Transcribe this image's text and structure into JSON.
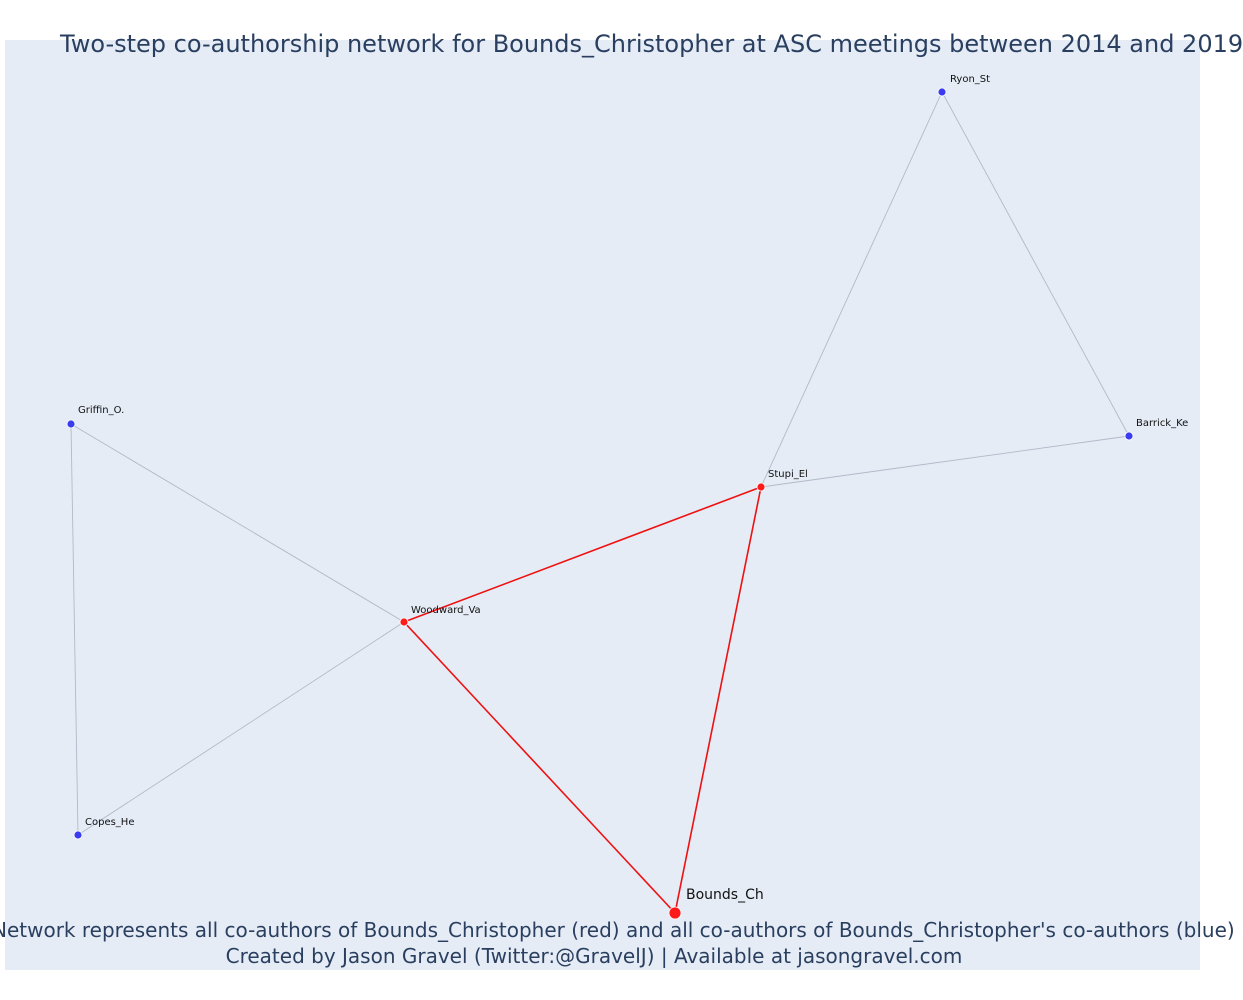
{
  "title": "Two-step co-authorship network for Bounds_Christopher at ASC meetings between 2014 and 2019",
  "caption_line1": "Network represents all co-authors of Bounds_Christopher (red) and all co-authors of Bounds_Christopher's co-authors (blue)",
  "caption_line2": "Created by Jason Gravel (Twitter:@GravelJ) | Available at jasongravel.com",
  "colors": {
    "plot_bg": "#e5ecf6",
    "first_degree": "#ff1a1a",
    "second_degree": "#3b3bf0",
    "edge_focal": "#ee1111",
    "edge_other": "#b4b8c8"
  },
  "nodes": [
    {
      "id": "bounds_ch",
      "label": "Bounds_Ch",
      "group": "focal"
    },
    {
      "id": "woodward_va",
      "label": "Woodward_Va",
      "group": "first"
    },
    {
      "id": "stupi_el",
      "label": "Stupi_El",
      "group": "first"
    },
    {
      "id": "griffin_o",
      "label": "Griffin_O.",
      "group": "second"
    },
    {
      "id": "copes_he",
      "label": "Copes_He",
      "group": "second"
    },
    {
      "id": "ryon_st",
      "label": "Ryon_St",
      "group": "second"
    },
    {
      "id": "barrick_ke",
      "label": "Barrick_Ke",
      "group": "second"
    }
  ],
  "edges": [
    {
      "source": "bounds_ch",
      "target": "woodward_va",
      "type": "focal"
    },
    {
      "source": "bounds_ch",
      "target": "stupi_el",
      "type": "focal"
    },
    {
      "source": "woodward_va",
      "target": "stupi_el",
      "type": "focal"
    },
    {
      "source": "woodward_va",
      "target": "griffin_o",
      "type": "other"
    },
    {
      "source": "woodward_va",
      "target": "copes_he",
      "type": "other"
    },
    {
      "source": "griffin_o",
      "target": "copes_he",
      "type": "other"
    },
    {
      "source": "stupi_el",
      "target": "ryon_st",
      "type": "other"
    },
    {
      "source": "stupi_el",
      "target": "barrick_ke",
      "type": "other"
    },
    {
      "source": "ryon_st",
      "target": "barrick_ke",
      "type": "other"
    }
  ]
}
